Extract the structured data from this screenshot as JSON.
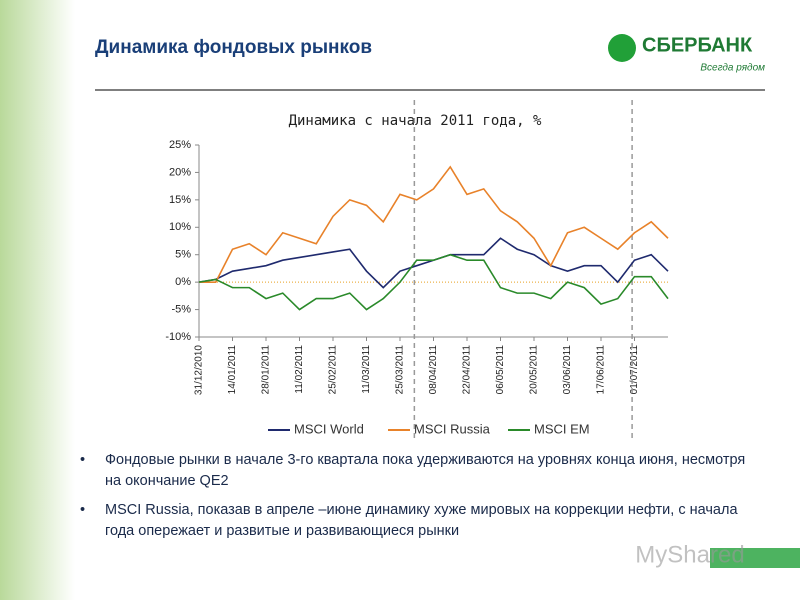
{
  "header": {
    "title": "Динамика фондовых рынков"
  },
  "logo": {
    "name": "СБЕРБАНК",
    "slogan": "Всегда рядом"
  },
  "chart_data": {
    "type": "line",
    "title": "Динамика с начала 2011 года, %",
    "x": [
      "31/12/2010",
      "07/01/2011",
      "14/01/2011",
      "21/01/2011",
      "28/01/2011",
      "04/02/2011",
      "11/02/2011",
      "18/02/2011",
      "25/02/2011",
      "04/03/2011",
      "11/03/2011",
      "18/03/2011",
      "25/03/2011",
      "01/04/2011",
      "08/04/2011",
      "15/04/2011",
      "22/04/2011",
      "29/04/2011",
      "06/05/2011",
      "13/05/2011",
      "20/05/2011",
      "27/05/2011",
      "03/06/2011",
      "10/06/2011",
      "17/06/2011",
      "24/06/2011",
      "01/07/2011",
      "08/07/2011",
      "15/07/2011"
    ],
    "series": [
      {
        "name": "MSCI World",
        "color": "#1f2a6e",
        "values": [
          0,
          0.5,
          2,
          2.5,
          3,
          4,
          4.5,
          5,
          5.5,
          6,
          2,
          -1,
          2,
          3,
          4,
          5,
          5,
          5,
          8,
          6,
          5,
          3,
          2,
          3,
          3,
          0,
          4,
          5,
          2
        ]
      },
      {
        "name": "MSCI Russia",
        "color": "#e8822a",
        "values": [
          0,
          0,
          6,
          7,
          5,
          9,
          8,
          7,
          12,
          15,
          14,
          11,
          16,
          15,
          17,
          21,
          16,
          17,
          13,
          11,
          8,
          3,
          9,
          10,
          8,
          6,
          9,
          11,
          8
        ]
      },
      {
        "name": "MSCI EM",
        "color": "#2a8a2a",
        "values": [
          0,
          0.5,
          -1,
          -1,
          -3,
          -2,
          -5,
          -3,
          -3,
          -2,
          -5,
          -3,
          0,
          4,
          4,
          5,
          4,
          4,
          -1,
          -2,
          -2,
          -3,
          0,
          -1,
          -4,
          -3,
          1,
          1,
          -3
        ]
      }
    ],
    "xlim": [
      "31/12/2010",
      "15/07/2011"
    ],
    "xticks": [
      "31/12/2010",
      "14/01/2011",
      "28/01/2011",
      "11/02/2011",
      "25/02/2011",
      "11/03/2011",
      "25/03/2011",
      "08/04/2011",
      "22/04/2011",
      "06/05/2011",
      "20/05/2011",
      "03/06/2011",
      "17/06/2011",
      "01/07/2011"
    ],
    "ylim": [
      -10,
      25
    ],
    "yticks": [
      {
        "value": -10,
        "label": "-10%"
      },
      {
        "value": -5,
        "label": "-5%"
      },
      {
        "value": 0,
        "label": "0%"
      },
      {
        "value": 5,
        "label": "5%"
      },
      {
        "value": 10,
        "label": "10%"
      },
      {
        "value": 15,
        "label": "15%"
      },
      {
        "value": 20,
        "label": "20%"
      },
      {
        "value": 25,
        "label": "25%"
      }
    ],
    "vlines": [
      "31/03/2011",
      "30/06/2011"
    ],
    "legend": "bottom"
  },
  "bullets": [
    "Фондовые рынки в начале 3-го квартала пока удерживаются на уровнях конца июня, несмотря на окончание QE2",
    "MSCI Russia, показав в апреле –июне динамику хуже мировых на коррекции нефти, с начала года опережает и развитые и развивающиеся рынки"
  ],
  "watermark": "MyShared"
}
